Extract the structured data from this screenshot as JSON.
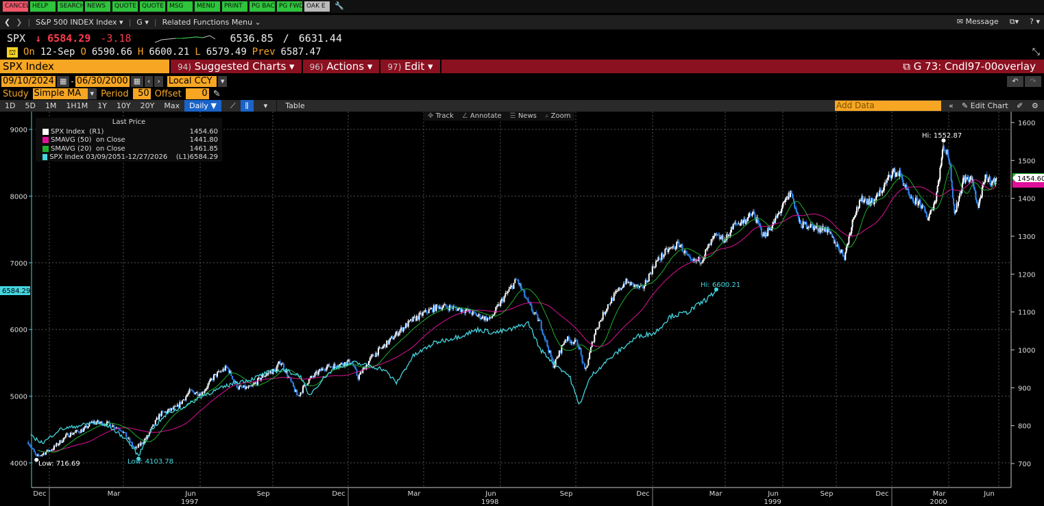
{
  "function_keys": [
    {
      "label": "CANCEL",
      "color": "#f0566a"
    },
    {
      "label": "HELP",
      "color": "#2ec43c"
    },
    {
      "label": "SEARCH",
      "color": "#2ec43c"
    },
    {
      "label": "NEWS",
      "color": "#2ec43c"
    },
    {
      "label": "QUOTE",
      "color": "#2ec43c"
    },
    {
      "label": "QUOTE",
      "color": "#2ec43c"
    },
    {
      "label": "MSG",
      "color": "#2ec43c"
    },
    {
      "label": "MENU",
      "color": "#2ec43c"
    },
    {
      "label": "PRINT",
      "color": "#2ec43c"
    },
    {
      "label": "PG BACK",
      "color": "#2ec43c"
    },
    {
      "label": "PG FWD",
      "color": "#2ec43c"
    },
    {
      "label": "OAK E",
      "color": "#b9b9b9"
    }
  ],
  "nav": {
    "security": "S&P 500 INDEX Index ▾",
    "function": "G ▾",
    "related": "Related Functions Menu ⌄",
    "message": "Message",
    "help": "? ▾"
  },
  "quote": {
    "ticker": "SPX",
    "arrow": "↓",
    "last": "6584.29",
    "change": "-3.18",
    "bid": "6536.85",
    "sep": "/",
    "ask": "6631.44",
    "on_label": "On",
    "date": "12-Sep",
    "open_label": "O",
    "open": "6590.66",
    "high_label": "H",
    "high": "6600.21",
    "low_label": "L",
    "low": "6579.49",
    "prev_label": "Prev",
    "prev": "6587.47"
  },
  "header": {
    "security_field": "SPX Index",
    "menus": [
      {
        "num": "94)",
        "label": "Suggested Charts ▾"
      },
      {
        "num": "96)",
        "label": "Actions ▾"
      },
      {
        "num": "97)",
        "label": "Edit ▾"
      }
    ],
    "chart_title": "G 73: Cndl97-00overlay"
  },
  "controls": {
    "start_date": "09/10/2024",
    "dash": "-",
    "end_date": "06/30/2000",
    "currency": "Local CCY",
    "study_label": "Study",
    "study": "Simple MA",
    "period_label": "Period",
    "period": "50",
    "offset_label": "Offset",
    "offset": "0"
  },
  "toolbar": {
    "ranges": [
      "1D",
      "5D",
      "1M",
      "1H1M",
      "1Y",
      "10Y",
      "20Y",
      "Max"
    ],
    "frequency": "Daily ▼",
    "table": "Table",
    "add_data_placeholder": "Add Data",
    "edit_chart": "Edit Chart"
  },
  "chart_tools": [
    "Track",
    "Annotate",
    "News",
    "Zoom"
  ],
  "legend": {
    "title": "Last Price",
    "items": [
      {
        "label": "SPX Index  (R1)",
        "value": "1454.60",
        "color": "#ffffff"
      },
      {
        "label": "SMAVG (50)  on Close",
        "value": "1441.80",
        "color": "#e0109a"
      },
      {
        "label": "SMAVG (20)  on Close",
        "value": "1461.85",
        "color": "#1fb02c"
      },
      {
        "label": "SPX Index 03/09/2051-12/27/2026    (L1)",
        "value": "6584.29",
        "color": "#45d6e0"
      }
    ]
  },
  "chart_data": {
    "type": "candlestick+line",
    "x_ticks": [
      "Dec",
      "Mar",
      "Jun",
      "Sep",
      "Dec",
      "Mar",
      "Jun",
      "Sep",
      "Dec",
      "Mar",
      "Jun",
      "Sep",
      "Dec",
      "Mar",
      "Jun"
    ],
    "x_tick_months": [
      "1996-12",
      "1997-03",
      "1997-06",
      "1997-09",
      "1997-12",
      "1998-03",
      "1998-06",
      "1998-09",
      "1998-12",
      "1999-03",
      "1999-06",
      "1999-09",
      "1999-12",
      "2000-03",
      "2000-06"
    ],
    "year_labels": [
      {
        "label": "1997",
        "month": "1997-06"
      },
      {
        "label": "1998",
        "month": "1998-06"
      },
      {
        "label": "1999",
        "month": "1999-06"
      },
      {
        "label": "2000",
        "month": "2000-03"
      }
    ],
    "left_axis": {
      "ticks": [
        4000,
        5000,
        6000,
        7000,
        8000,
        9000
      ],
      "range": [
        3650,
        9270
      ]
    },
    "right_axis": {
      "ticks": [
        700,
        800,
        900,
        1000,
        1100,
        1200,
        1300,
        1400,
        1500,
        1600
      ],
      "range": [
        640,
        1620
      ]
    },
    "grid": true,
    "last_value_tags": {
      "right": "1454.60",
      "left": "6584.29"
    },
    "annotations": [
      {
        "text": "Low: 716.69",
        "series": "R1"
      },
      {
        "text": "Low: 4103.78",
        "series": "L1"
      },
      {
        "text": "Hi: 6600.21",
        "series": "L1"
      },
      {
        "text": "Hi: 1552.87",
        "series": "R1"
      }
    ],
    "series": [
      {
        "name": "SPX Index (R1)",
        "axis": "right",
        "style": "candles",
        "up_color": "#ffffff",
        "down_color": "#2f86f0",
        "points": [
          [
            "1996-12-02",
            757
          ],
          [
            "1996-12-12",
            717
          ],
          [
            "1997-01-02",
            740
          ],
          [
            "1997-01-20",
            776
          ],
          [
            "1997-02-10",
            790
          ],
          [
            "1997-02-20",
            810
          ],
          [
            "1997-03-10",
            805
          ],
          [
            "1997-03-25",
            790
          ],
          [
            "1997-04-11",
            737
          ],
          [
            "1997-04-25",
            770
          ],
          [
            "1997-05-10",
            830
          ],
          [
            "1997-05-30",
            848
          ],
          [
            "1997-06-15",
            890
          ],
          [
            "1997-06-30",
            885
          ],
          [
            "1997-07-15",
            930
          ],
          [
            "1997-07-31",
            954
          ],
          [
            "1997-08-15",
            900
          ],
          [
            "1997-08-30",
            899
          ],
          [
            "1997-09-15",
            930
          ],
          [
            "1997-09-30",
            947
          ],
          [
            "1997-10-07",
            970
          ],
          [
            "1997-10-27",
            877
          ],
          [
            "1997-11-10",
            920
          ],
          [
            "1997-11-30",
            955
          ],
          [
            "1997-12-15",
            960
          ],
          [
            "1997-12-31",
            970
          ],
          [
            "1998-01-09",
            927
          ],
          [
            "1998-01-25",
            980
          ],
          [
            "1998-02-15",
            1020
          ],
          [
            "1998-02-28",
            1049
          ],
          [
            "1998-03-15",
            1080
          ],
          [
            "1998-03-31",
            1101
          ],
          [
            "1998-04-15",
            1115
          ],
          [
            "1998-04-30",
            1112
          ],
          [
            "1998-05-15",
            1105
          ],
          [
            "1998-05-31",
            1090
          ],
          [
            "1998-06-15",
            1080
          ],
          [
            "1998-06-30",
            1133
          ],
          [
            "1998-07-17",
            1186
          ],
          [
            "1998-07-31",
            1120
          ],
          [
            "1998-08-15",
            1070
          ],
          [
            "1998-08-31",
            957
          ],
          [
            "1998-09-15",
            1030
          ],
          [
            "1998-09-30",
            1017
          ],
          [
            "1998-10-08",
            940
          ],
          [
            "1998-10-20",
            1050
          ],
          [
            "1998-11-05",
            1120
          ],
          [
            "1998-11-25",
            1180
          ],
          [
            "1998-12-15",
            1160
          ],
          [
            "1998-12-31",
            1229
          ],
          [
            "1999-01-15",
            1260
          ],
          [
            "1999-01-31",
            1280
          ],
          [
            "1999-02-15",
            1230
          ],
          [
            "1999-02-28",
            1238
          ],
          [
            "1999-03-15",
            1300
          ],
          [
            "1999-03-31",
            1290
          ],
          [
            "1999-04-15",
            1330
          ],
          [
            "1999-04-30",
            1340
          ],
          [
            "1999-05-15",
            1360
          ],
          [
            "1999-05-31",
            1300
          ],
          [
            "1999-06-15",
            1330
          ],
          [
            "1999-06-30",
            1372
          ],
          [
            "1999-07-16",
            1418
          ],
          [
            "1999-07-31",
            1330
          ],
          [
            "1999-08-15",
            1330
          ],
          [
            "1999-08-31",
            1320
          ],
          [
            "1999-09-15",
            1320
          ],
          [
            "1999-09-30",
            1282
          ],
          [
            "1999-10-15",
            1247
          ],
          [
            "1999-10-31",
            1362
          ],
          [
            "1999-11-15",
            1400
          ],
          [
            "1999-11-30",
            1389
          ],
          [
            "1999-12-15",
            1420
          ],
          [
            "1999-12-31",
            1469
          ],
          [
            "2000-01-14",
            1465
          ],
          [
            "2000-01-31",
            1394
          ],
          [
            "2000-02-15",
            1390
          ],
          [
            "2000-02-28",
            1348
          ],
          [
            "2000-03-10",
            1395
          ],
          [
            "2000-03-24",
            1540
          ],
          [
            "2000-04-05",
            1500
          ],
          [
            "2000-04-14",
            1356
          ],
          [
            "2000-04-30",
            1452
          ],
          [
            "2000-05-15",
            1450
          ],
          [
            "2000-05-26",
            1378
          ],
          [
            "2000-06-10",
            1456
          ],
          [
            "2000-06-23",
            1441
          ],
          [
            "2000-06-30",
            1454.6
          ]
        ]
      },
      {
        "name": "SMAVG (50) on Close",
        "axis": "right",
        "style": "line",
        "color": "#e0109a",
        "period": 50
      },
      {
        "name": "SMAVG (20) on Close",
        "axis": "right",
        "style": "line",
        "color": "#1fb02c",
        "period": 20
      },
      {
        "name": "SPX Index 03/09/2051-12/27/2026 (L1)",
        "axis": "left",
        "style": "line",
        "color": "#45d6e0",
        "points": [
          [
            "1996-12-05",
            4400
          ],
          [
            "1996-12-20",
            4300
          ],
          [
            "1997-01-10",
            4500
          ],
          [
            "1997-02-01",
            4550
          ],
          [
            "1997-02-20",
            4600
          ],
          [
            "1997-03-10",
            4550
          ],
          [
            "1997-03-31",
            4350
          ],
          [
            "1997-04-15",
            4104
          ],
          [
            "1997-04-30",
            4500
          ],
          [
            "1997-05-20",
            4750
          ],
          [
            "1997-06-10",
            4850
          ],
          [
            "1997-06-30",
            5000
          ],
          [
            "1997-07-20",
            5100
          ],
          [
            "1997-08-10",
            5200
          ],
          [
            "1997-08-31",
            5250
          ],
          [
            "1997-09-20",
            5350
          ],
          [
            "1997-10-10",
            5400
          ],
          [
            "1997-10-31",
            5300
          ],
          [
            "1997-11-10",
            5000
          ],
          [
            "1997-11-30",
            5300
          ],
          [
            "1997-12-15",
            5450
          ],
          [
            "1998-01-05",
            5500
          ],
          [
            "1998-01-25",
            5450
          ],
          [
            "1998-02-10",
            5400
          ],
          [
            "1998-02-25",
            5200
          ],
          [
            "1998-03-15",
            5600
          ],
          [
            "1998-04-10",
            5800
          ],
          [
            "1998-05-10",
            5900
          ],
          [
            "1998-06-01",
            6000
          ],
          [
            "1998-06-20",
            5950
          ],
          [
            "1998-07-10",
            6000
          ],
          [
            "1998-07-31",
            6100
          ],
          [
            "1998-08-15",
            5700
          ],
          [
            "1998-09-01",
            5500
          ],
          [
            "1998-09-20",
            5300
          ],
          [
            "1998-10-01",
            4860
          ],
          [
            "1998-10-15",
            5300
          ],
          [
            "1998-10-31",
            5500
          ],
          [
            "1998-11-20",
            5700
          ],
          [
            "1998-12-10",
            5900
          ],
          [
            "1998-12-31",
            5950
          ],
          [
            "1999-01-20",
            6200
          ],
          [
            "1999-02-10",
            6250
          ],
          [
            "1999-02-28",
            6400
          ],
          [
            "1999-03-10",
            6500
          ],
          [
            "1999-03-17",
            6600.21
          ]
        ]
      }
    ]
  }
}
